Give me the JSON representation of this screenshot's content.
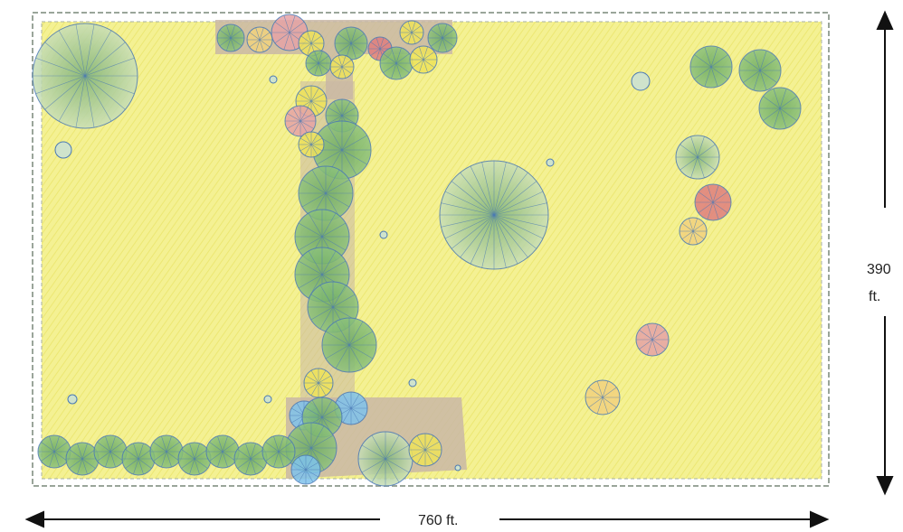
{
  "dimensions": {
    "width_label": "760 ft.",
    "height_value": "390",
    "height_unit": "ft."
  },
  "colors": {
    "lawn": "#f3f08a",
    "lawn_light": "#f7f6c2",
    "path": "#c9b7a6",
    "tree_green": "#79b86c",
    "tree_dark": "#4f9b4a",
    "tree_yellow": "#efe35a",
    "tree_pink": "#e6a3a6",
    "tree_red": "#e07e7e",
    "tree_blue": "#7fc3ec",
    "tree_orange": "#f2d27e",
    "outline": "#4a79b5",
    "border": "#9aa59a"
  }
}
